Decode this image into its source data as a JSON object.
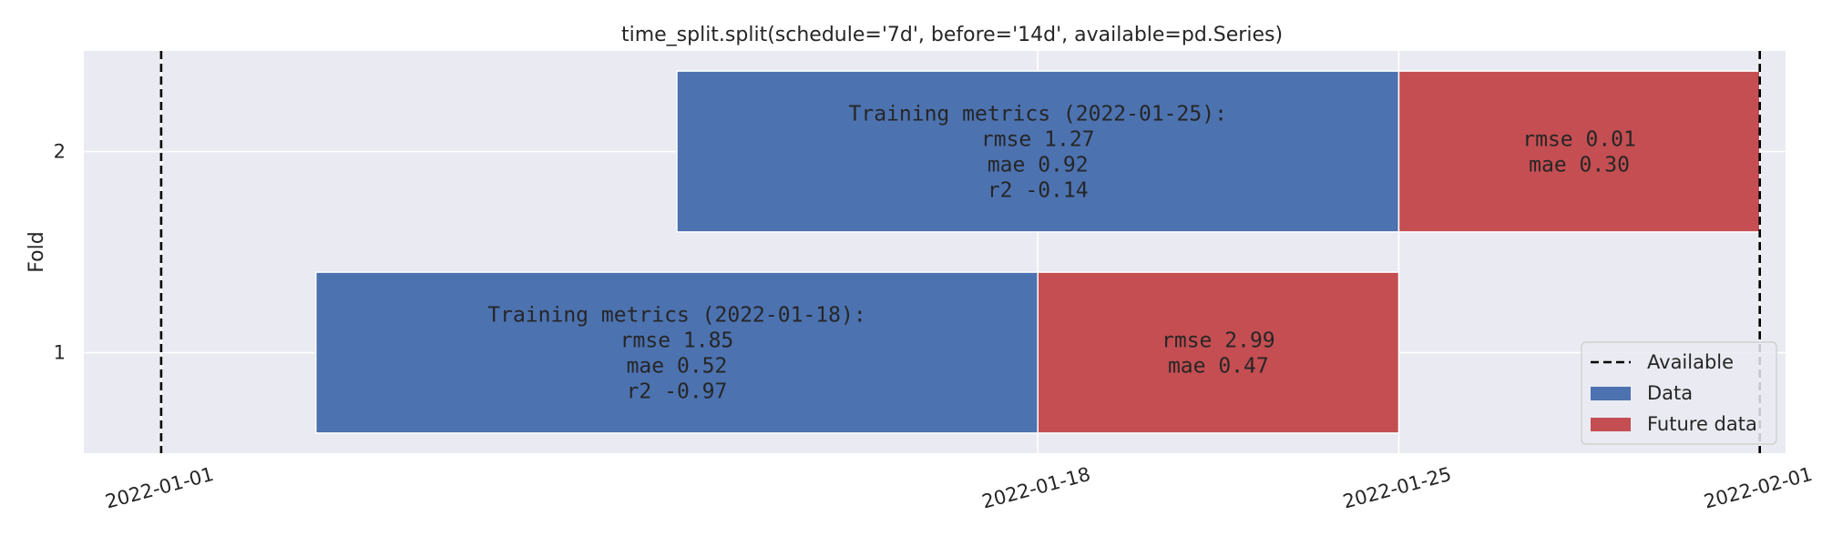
{
  "chart_data": {
    "type": "bar",
    "orientation": "horizontal",
    "title": "time_split.split(schedule='7d', before='14d', available=pd.Series)",
    "xlabel": "",
    "ylabel": "Fold",
    "xlim": [
      "2021-12-30T12:00",
      "2022-02-01T12:00"
    ],
    "ylim": [
      0.5,
      2.5
    ],
    "x_ticks": [
      "2022-01-01",
      "2022-01-18",
      "2022-01-25",
      "2022-02-01"
    ],
    "y_ticks": [
      "1",
      "2"
    ],
    "grid": true,
    "legend_position": "bottom-right",
    "legend": [
      {
        "label": "Available",
        "style": "dashed-line",
        "color": "#000000"
      },
      {
        "label": "Data",
        "style": "patch",
        "color": "#4c72b0"
      },
      {
        "label": "Future data",
        "style": "patch",
        "color": "#c44e52"
      }
    ],
    "available": [
      "2022-01-01",
      "2022-02-01"
    ],
    "folds": [
      {
        "fold": 1,
        "data": {
          "start": "2022-01-04",
          "end": "2022-01-18"
        },
        "future": {
          "start": "2022-01-18",
          "end": "2022-01-25"
        },
        "training_lines": [
          "Training metrics (2022-01-18):",
          "rmse    1.85",
          "mae     0.52",
          "r2     -0.97"
        ],
        "future_lines": [
          "rmse   2.99",
          "mae    0.47"
        ]
      },
      {
        "fold": 2,
        "data": {
          "start": "2022-01-11",
          "end": "2022-01-25"
        },
        "future": {
          "start": "2022-01-25",
          "end": "2022-02-01"
        },
        "training_lines": [
          "Training metrics (2022-01-25):",
          "rmse    1.27",
          "mae     0.92",
          "r2     -0.14"
        ],
        "future_lines": [
          "rmse   0.01",
          "mae    0.30"
        ]
      }
    ],
    "colors": {
      "data": "#4c72b0",
      "future": "#c44e52",
      "available": "#000000",
      "background": "#eaeaf2",
      "grid": "#ffffff"
    }
  }
}
